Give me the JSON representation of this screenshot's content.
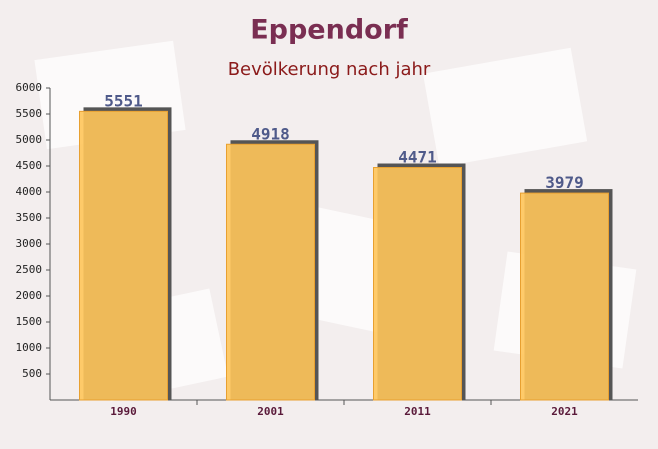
{
  "chart_data": {
    "type": "bar",
    "title": "Eppendorf",
    "subtitle": "Bevölkerung nach jahr",
    "categories": [
      "1990",
      "2001",
      "2011",
      "2021"
    ],
    "values": [
      5551,
      4918,
      4471,
      3979
    ],
    "color": "#ffc55a",
    "ylim": [
      0,
      6000
    ],
    "yticks": [
      500,
      1000,
      1500,
      2000,
      2500,
      3000,
      3500,
      4000,
      4500,
      5000,
      5500,
      6000
    ]
  }
}
